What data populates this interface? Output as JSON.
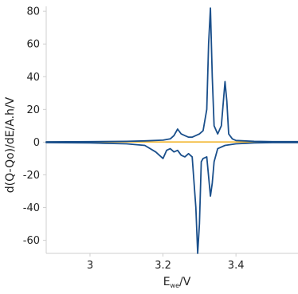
{
  "chart_data": {
    "type": "line",
    "title": "",
    "xlabel": "E",
    "xlabel_sub": "we",
    "xlabel_unit": "/V",
    "ylabel": "d(Q-Qo)/dE/A.h/V",
    "xlim": [
      2.88,
      3.57
    ],
    "ylim": [
      -68,
      83
    ],
    "xticks": [
      3.0,
      3.2,
      3.4
    ],
    "xtick_labels": [
      "3",
      "3.2",
      "3.4"
    ],
    "yticks": [
      80,
      60,
      40,
      20,
      0,
      -20,
      -40,
      -60
    ],
    "ytick_labels": [
      "80",
      "60",
      "40",
      "20",
      "0",
      "-20",
      "-40",
      "-60"
    ],
    "grid": false,
    "legend": "none",
    "series": [
      {
        "color": "#f2b731",
        "x": [
          2.88,
          3.0,
          3.1,
          3.2,
          3.3,
          3.38,
          3.45,
          3.57
        ],
        "y": [
          0.1,
          0.1,
          0.1,
          0.1,
          0.1,
          0.1,
          0.1,
          0.1
        ]
      },
      {
        "color": "#1a4f8b",
        "x": [
          2.88,
          3.0,
          3.1,
          3.15,
          3.2,
          3.22,
          3.23,
          3.24,
          3.25,
          3.26,
          3.27,
          3.28,
          3.3,
          3.31,
          3.32,
          3.325,
          3.33,
          3.335,
          3.34,
          3.35,
          3.36,
          3.37,
          3.375,
          3.38,
          3.39,
          3.4,
          3.45,
          3.5,
          3.57
        ],
        "y": [
          0.2,
          0.3,
          0.5,
          0.8,
          1.2,
          2.0,
          4.0,
          8.0,
          5.0,
          4.0,
          3.0,
          3.0,
          5.0,
          7.0,
          20.0,
          60.0,
          82.0,
          40.0,
          10.0,
          5.0,
          10.0,
          37.0,
          25.0,
          5.0,
          2.0,
          1.0,
          0.5,
          0.3,
          0.3
        ]
      },
      {
        "color": "#1a4f8b",
        "x": [
          2.88,
          3.0,
          3.1,
          3.15,
          3.18,
          3.2,
          3.21,
          3.22,
          3.23,
          3.24,
          3.25,
          3.26,
          3.27,
          3.28,
          3.29,
          3.295,
          3.3,
          3.305,
          3.31,
          3.32,
          3.33,
          3.335,
          3.34,
          3.35,
          3.37,
          3.4,
          3.45,
          3.5,
          3.57
        ],
        "y": [
          -0.3,
          -0.5,
          -1.0,
          -2.0,
          -6.0,
          -10.0,
          -5.0,
          -4.0,
          -6.0,
          -5.0,
          -8.0,
          -9.0,
          -7.0,
          -9.0,
          -40.0,
          -68.0,
          -50.0,
          -12.0,
          -10.0,
          -9.0,
          -33.0,
          -25.0,
          -12.0,
          -4.0,
          -2.0,
          -1.0,
          -0.5,
          -0.3,
          -0.3
        ]
      }
    ]
  }
}
